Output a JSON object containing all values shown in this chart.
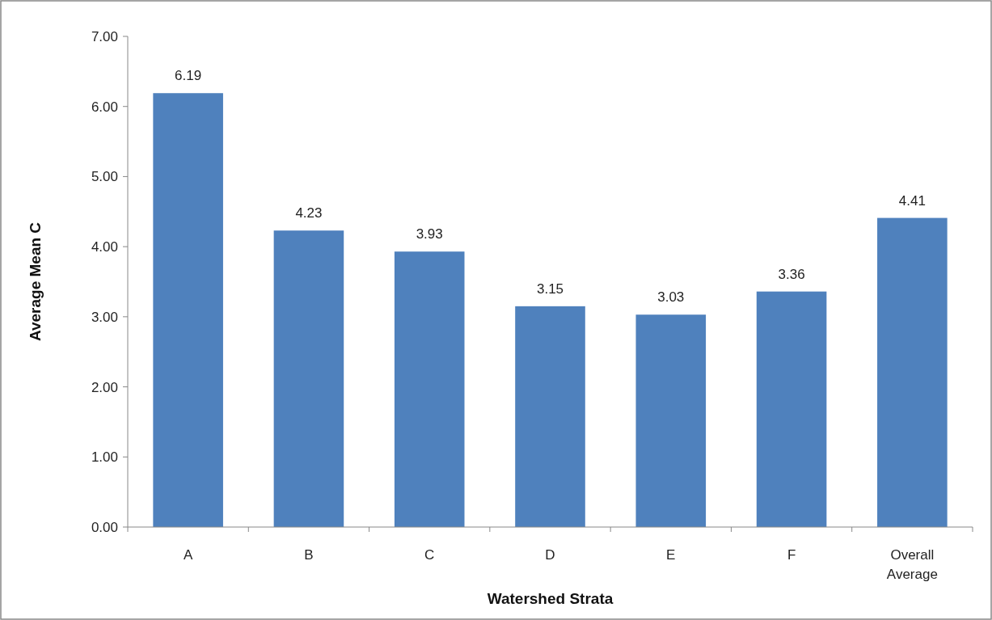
{
  "chart_data": {
    "type": "bar",
    "xlabel": "Watershed Strata",
    "ylabel": "Average Mean C",
    "categories": [
      "A",
      "B",
      "C",
      "D",
      "E",
      "F",
      "Overall Average"
    ],
    "values": [
      6.19,
      4.23,
      3.93,
      3.15,
      3.03,
      3.36,
      4.41
    ],
    "color": "#4f81bd",
    "ylim": [
      0,
      7
    ],
    "yticks": [
      {
        "value": 0,
        "label": "0.00"
      },
      {
        "value": 1,
        "label": "1.00"
      },
      {
        "value": 2,
        "label": "2.00"
      },
      {
        "value": 3,
        "label": "3.00"
      },
      {
        "value": 4,
        "label": "4.00"
      },
      {
        "value": 5,
        "label": "5.00"
      },
      {
        "value": 6,
        "label": "6.00"
      },
      {
        "value": 7,
        "label": "7.00"
      }
    ],
    "data_labels": true,
    "grid": false
  }
}
